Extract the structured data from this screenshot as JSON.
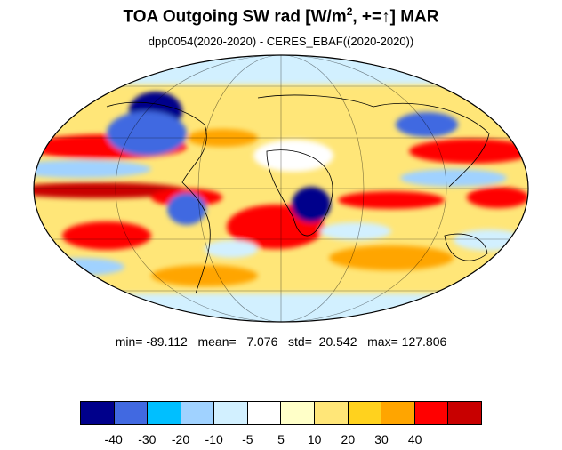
{
  "title": {
    "main": "TOA Outgoing SW rad [W/m",
    "sup": "2",
    "tail": ", +=↑] MAR"
  },
  "subtitle": "dpp0054(2020-2020) - CERES_EBAF((2020-2020))",
  "stats": "min= -89.112   mean=   7.076   std=  20.542   max= 127.806",
  "colorbar": {
    "colors": [
      "#00008b",
      "#4169e1",
      "#00bfff",
      "#a0d2ff",
      "#d2f0ff",
      "#ffffff",
      "#ffffc8",
      "#ffe678",
      "#ffd21e",
      "#ffa500",
      "#ff0000",
      "#c80000"
    ],
    "labels": [
      "-40",
      "-30",
      "-20",
      "-10",
      "-5",
      "5",
      "10",
      "20",
      "30",
      "40"
    ]
  }
}
